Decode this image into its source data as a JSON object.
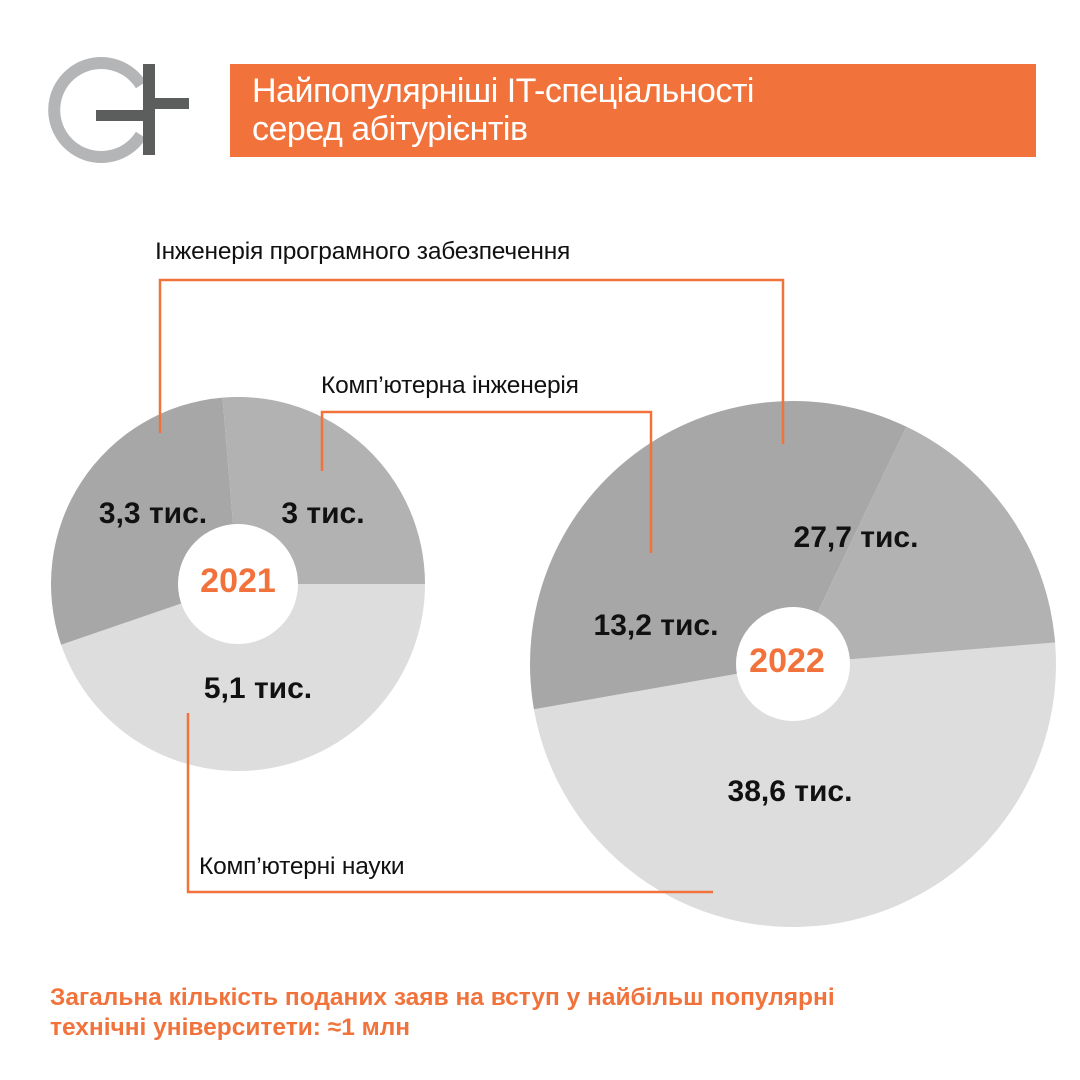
{
  "logo": {
    "name": "GL logo",
    "ring_color": "#b4b5b7",
    "bar_color": "#5c5d5d"
  },
  "header": {
    "title_line1": "Найпопулярніші IT-спеціальності",
    "title_line2": "серед абітурієнтів",
    "background": "#f1733b"
  },
  "labels": {
    "software_engineering": "Інженерія програмного забезпечення",
    "computer_engineering": "Комп’ютерна інженерія",
    "computer_science": "Комп’ютерні науки"
  },
  "pies": [
    {
      "year": "2021",
      "values_text": {
        "computer_science": "5,1 тис.",
        "software_engineering": "3,3 тис.",
        "computer_engineering": "3 тис."
      }
    },
    {
      "year": "2022",
      "values_text": {
        "computer_science": "38,6 тис.",
        "software_engineering": "27,7 тис.",
        "computer_engineering": "13,2 тис."
      }
    }
  ],
  "footer": {
    "line1": "Загальна кількість поданих заяв на вступ у найбільш популярні",
    "line2": "технічні університети: ≈1 млн"
  },
  "colors": {
    "accent": "#f1733b",
    "computer_science": "#dddddd",
    "software_engineering": "#a7a7a7",
    "computer_engineering": "#b2b2b2",
    "text": "#111111"
  },
  "chart_data": [
    {
      "type": "pie",
      "title": "2021",
      "subtitle": "Найпопулярніші IT-спеціальності серед абітурієнтів",
      "unit": "тис. заяв",
      "categories": [
        "Комп’ютерні науки",
        "Інженерія програмного забезпечення",
        "Комп’ютерна інженерія"
      ],
      "values": [
        5.1,
        3.3,
        3.0
      ],
      "value_labels": [
        "5,1 тис.",
        "3,3 тис.",
        "3 тис."
      ],
      "colors": [
        "#dddddd",
        "#a7a7a7",
        "#b2b2b2"
      ],
      "donut": true,
      "legend": "callout lines with labels"
    },
    {
      "type": "pie",
      "title": "2022",
      "subtitle": "Найпопулярніші IT-спеціальності серед абітурієнтів",
      "unit": "тис. заяв",
      "categories": [
        "Комп’ютерні науки",
        "Інженерія програмного забезпечення",
        "Комп’ютерна інженерія"
      ],
      "values": [
        38.6,
        27.7,
        13.2
      ],
      "value_labels": [
        "38,6 тис.",
        "27,7 тис.",
        "13,2 тис."
      ],
      "colors": [
        "#dddddd",
        "#a7a7a7",
        "#b2b2b2"
      ],
      "donut": true,
      "legend": "callout lines with labels"
    }
  ]
}
